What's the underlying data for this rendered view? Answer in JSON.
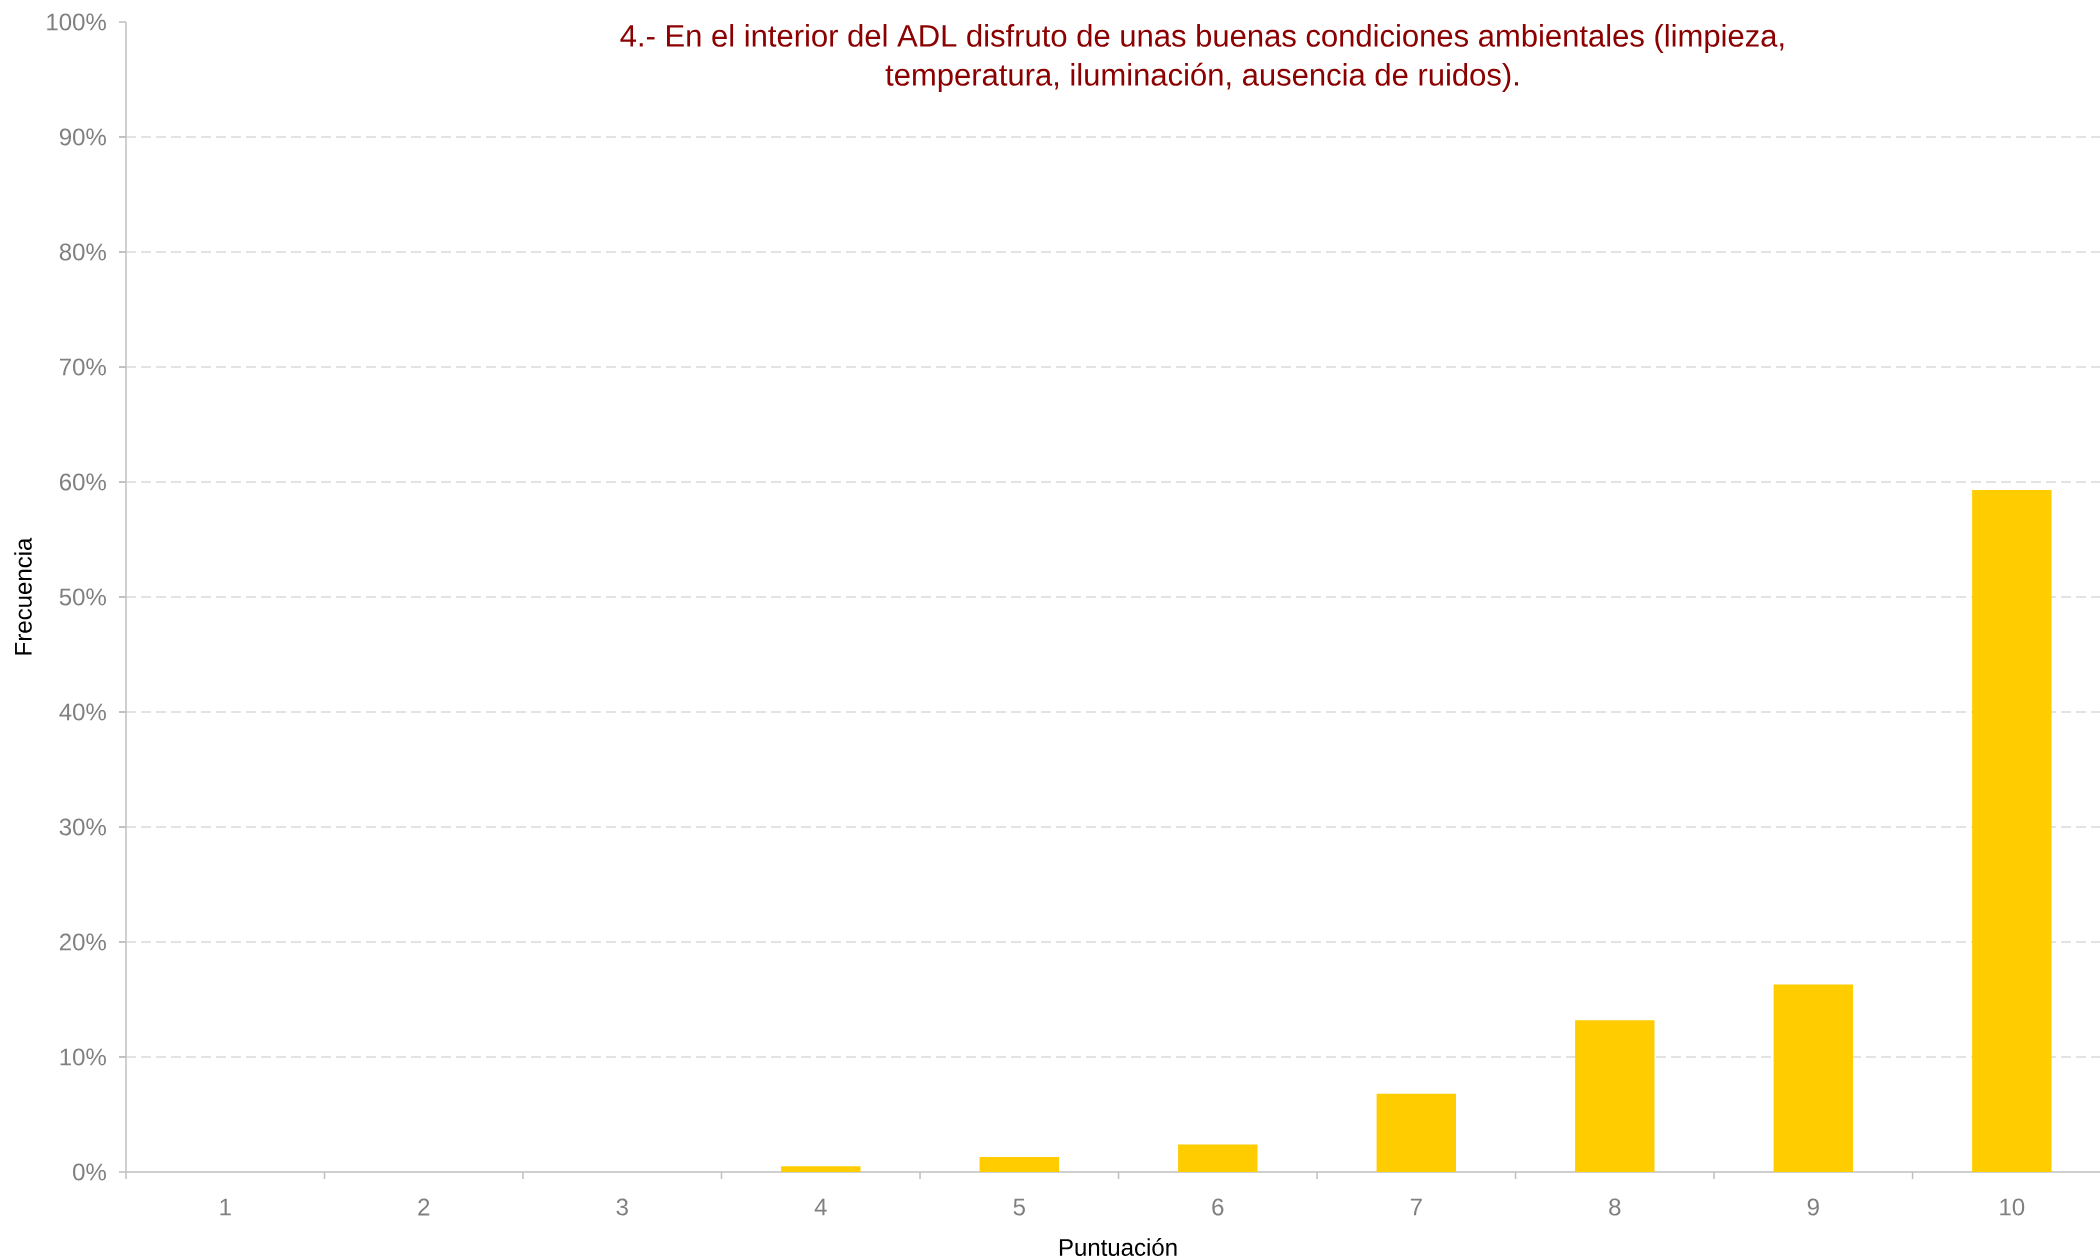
{
  "chart_data": {
    "type": "bar",
    "title": "4.- En el interior del ADL disfruto de unas buenas condiciones ambientales (limpieza, temperatura, iluminación, ausencia de ruidos).",
    "xlabel": "Puntuación",
    "ylabel": "Frecuencia",
    "categories": [
      "1",
      "2",
      "3",
      "4",
      "5",
      "6",
      "7",
      "8",
      "9",
      "10"
    ],
    "values": [
      0,
      0,
      0,
      0.5,
      1.3,
      2.4,
      6.8,
      13.2,
      16.3,
      59.3
    ],
    "color": "#ffcc00",
    "ylim": [
      0,
      100
    ],
    "yticks": [
      {
        "value": 0,
        "label": "0%"
      },
      {
        "value": 10,
        "label": "10%"
      },
      {
        "value": 20,
        "label": "20%"
      },
      {
        "value": 30,
        "label": "30%"
      },
      {
        "value": 40,
        "label": "40%"
      },
      {
        "value": 50,
        "label": "50%"
      },
      {
        "value": 60,
        "label": "60%"
      },
      {
        "value": 70,
        "label": "70%"
      },
      {
        "value": 80,
        "label": "80%"
      },
      {
        "value": 90,
        "label": "90%"
      },
      {
        "value": 100,
        "label": "100%"
      }
    ],
    "grid": "y"
  }
}
